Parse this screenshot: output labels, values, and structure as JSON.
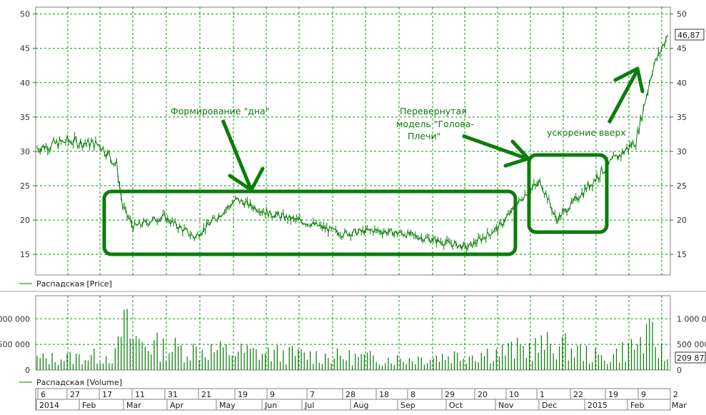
{
  "colors": {
    "series": "#007a00",
    "grid": "#009900",
    "annotation": "#0b7d0b",
    "background": "#ffffff"
  },
  "price_panel": {
    "legend": "Распадская [Price]",
    "y_ticks": [
      "50",
      "45",
      "40",
      "35",
      "30",
      "25",
      "20",
      "15"
    ],
    "last_value": "46,87"
  },
  "volume_panel": {
    "legend": "Распадская [Volume]",
    "y_ticks_left": [
      "1 000 000",
      "500 000",
      "0"
    ],
    "y_ticks_right": [
      "1 000 000",
      "500 000",
      "0"
    ],
    "last_value": "209 871"
  },
  "time_axis": {
    "day_labels": [
      "6",
      "27",
      "17",
      "11",
      "31",
      "21",
      "19",
      "9",
      "7",
      "28",
      "18",
      "8",
      "29",
      "20",
      "10",
      "1",
      "22",
      "19",
      "9",
      "2"
    ],
    "month_labels": [
      "2014",
      "Feb",
      "Mar",
      "Apr",
      "May",
      "Jun",
      "Jul",
      "Aug",
      "Sep",
      "Oct",
      "Nov",
      "Dec",
      "2015",
      "Feb",
      "Mar"
    ]
  },
  "annotations": {
    "bottom_formation": "Формирование \"дна\"",
    "inverted_hs": [
      "Перевернутая",
      "модель \"Голова-",
      "Плечи\""
    ],
    "acceleration": "ускорение вверх"
  },
  "chart_data": [
    {
      "type": "line",
      "title": "",
      "series": [
        {
          "name": "Распадская [Price]",
          "x": [
            "2014-01-06",
            "2014-01-27",
            "2014-02-17",
            "2014-02-28",
            "2014-03-04",
            "2014-03-11",
            "2014-03-31",
            "2014-04-21",
            "2014-05-19",
            "2014-06-09",
            "2014-07-07",
            "2014-07-28",
            "2014-08-18",
            "2014-09-08",
            "2014-09-29",
            "2014-10-20",
            "2014-11-10",
            "2014-11-28",
            "2014-12-08",
            "2014-12-18",
            "2014-12-29",
            "2015-01-19",
            "2015-02-09",
            "2015-02-20",
            "2015-03-02"
          ],
          "values": [
            30.5,
            31.5,
            31.0,
            28.0,
            22.0,
            19.0,
            20.5,
            17.5,
            23.0,
            21.0,
            19.5,
            18.0,
            18.5,
            18.0,
            17.0,
            16.0,
            19.0,
            24.0,
            25.5,
            20.0,
            22.5,
            27.5,
            31.5,
            42.0,
            46.87
          ]
        }
      ],
      "ylim": [
        12,
        51
      ]
    },
    {
      "type": "bar",
      "title": "",
      "series": [
        {
          "name": "Распадская [Volume]",
          "x": [
            "2014-01-06",
            "2014-02-28",
            "2014-03-04",
            "2014-03-11",
            "2014-03-31",
            "2014-05-19",
            "2014-07-07",
            "2014-09-08",
            "2014-11-10",
            "2014-12-18",
            "2015-01-19",
            "2015-02-20",
            "2015-03-02"
          ],
          "values": [
            300000,
            400000,
            1300000,
            850000,
            600000,
            500000,
            400000,
            300000,
            500000,
            700000,
            300000,
            900000,
            209871
          ]
        }
      ],
      "ylim": [
        0,
        1450000
      ]
    }
  ]
}
